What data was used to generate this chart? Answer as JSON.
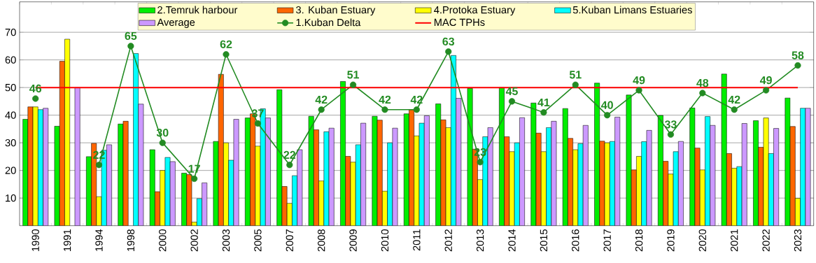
{
  "chart_data": {
    "type": "bar",
    "categories": [
      "1990",
      "1991",
      "1994",
      "1998",
      "2000",
      "2002",
      "2003",
      "2005",
      "2007",
      "2008",
      "2009",
      "2010",
      "2011",
      "2012",
      "2013",
      "2014",
      "2015",
      "2016",
      "2017",
      "2018",
      "2019",
      "2020",
      "2021",
      "2022",
      "2023"
    ],
    "series": [
      {
        "name": "2.Temruk harbour",
        "color": "#00ee00",
        "values": [
          38.5,
          36,
          25,
          36.8,
          27.5,
          19,
          30.5,
          39,
          49.2,
          39.6,
          52.2,
          39.6,
          40.5,
          44.1,
          49.7,
          50,
          44.4,
          42.4,
          51.6,
          47.3,
          39.9,
          42.6,
          54.9,
          38,
          46.2
        ]
      },
      {
        "name": "3. Kuban Estuary",
        "color": "#ff6600",
        "values": [
          43,
          59.5,
          29.8,
          37.8,
          12.3,
          18.5,
          54.8,
          40.5,
          14.2,
          34.7,
          25.1,
          38.2,
          42,
          38.3,
          27.7,
          32.2,
          33.5,
          31.6,
          30.6,
          20.2,
          23.3,
          28.1,
          26.1,
          28.4,
          35.9
        ]
      },
      {
        "name": "4.Protoka Estuary",
        "color": "#ffff00",
        "values": [
          43,
          67.5,
          10.5,
          null,
          20,
          1.3,
          30,
          28.8,
          8.1,
          16.2,
          23,
          12.5,
          32.5,
          35.5,
          16.7,
          26.8,
          26.8,
          27.5,
          30,
          25.1,
          18.7,
          20.2,
          20.8,
          39,
          9.9
        ]
      },
      {
        "name": "5.Kuban Limans Estuaries",
        "color": "#00ffff",
        "values": [
          42,
          null,
          27.3,
          62.3,
          24.7,
          9.8,
          23.7,
          42.3,
          18.1,
          34,
          29.3,
          30,
          37.1,
          61.6,
          32.2,
          30,
          35.5,
          29.7,
          30.5,
          30.4,
          26.8,
          39.5,
          21.4,
          26.1,
          42.5
        ]
      },
      {
        "name": "Average",
        "color": "#cc99ff",
        "values": [
          42.5,
          50,
          29.3,
          44,
          23.2,
          15.5,
          38.5,
          39,
          27.5,
          35.3,
          37.1,
          35.3,
          39.8,
          46.1,
          35.5,
          39.1,
          37.8,
          36.3,
          39.3,
          34.5,
          30.5,
          36.3,
          37,
          35.2,
          42.5
        ]
      },
      {
        "name": "1.Kuban Delta",
        "type": "line",
        "color": "#228b22",
        "marker": "circle",
        "data_labels": true,
        "values": [
          46,
          null,
          22,
          65,
          30,
          17,
          62,
          37,
          22,
          42,
          51,
          42,
          42,
          63,
          23,
          45,
          41,
          51,
          40,
          49,
          33,
          48,
          42,
          49,
          58
        ]
      }
    ],
    "ref_lines": [
      {
        "axis": "y",
        "value": 50,
        "label": "MAC TPHs",
        "color": "#ff0000"
      }
    ],
    "ylim": [
      0,
      81
    ],
    "yticks": [
      10,
      20,
      30,
      40,
      50,
      60,
      70
    ],
    "grid": "y",
    "legend": "top"
  }
}
